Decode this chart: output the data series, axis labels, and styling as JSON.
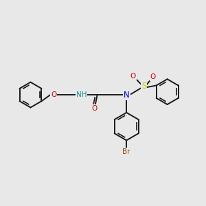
{
  "background_color": "#e8e8e8",
  "fig_size": [
    3.0,
    3.0
  ],
  "dpi": 100,
  "bond_color": "#1a1a1a",
  "bond_width": 1.4,
  "atom_colors": {
    "N": "#0000cc",
    "O": "#cc0000",
    "S": "#cccc00",
    "Br": "#994400",
    "H": "#1a9090"
  },
  "font_size": 7.5,
  "xlim": [
    0,
    10
  ],
  "ylim": [
    0,
    10
  ]
}
